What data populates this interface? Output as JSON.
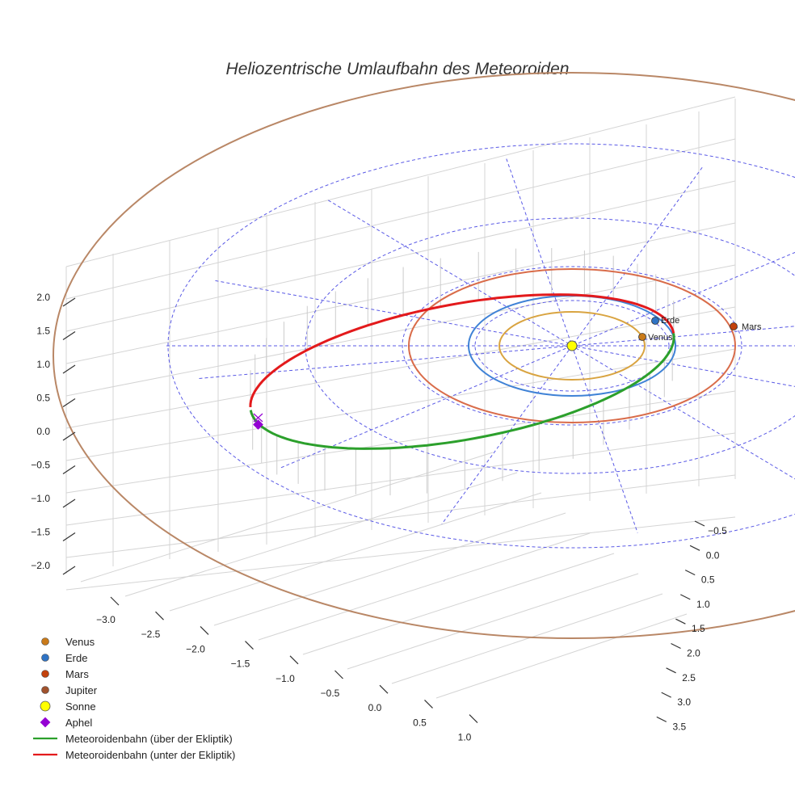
{
  "chart_data": {
    "type": "line",
    "title": "Heliozentrische Umlaufbahn des Meteoroiden",
    "axes": {
      "x": {
        "ticks": [
          "−3.0",
          "−2.5",
          "−2.0",
          "−1.5",
          "−1.0",
          "−0.5",
          "0.0",
          "0.5",
          "1.0"
        ],
        "range": [
          -3.2,
          1.2
        ]
      },
      "y": {
        "ticks": [
          "−0.5",
          "0.0",
          "0.5",
          "1.0",
          "1.5",
          "2.0",
          "2.5",
          "3.0",
          "3.5"
        ],
        "range": [
          -0.8,
          3.7
        ]
      },
      "z": {
        "ticks": [
          "2.0",
          "1.5",
          "1.0",
          "0.5",
          "0.0",
          "−0.5",
          "−1.0",
          "−1.5",
          "−2.0"
        ],
        "range": [
          -2.3,
          2.3
        ]
      }
    },
    "planets": [
      {
        "name": "Venus",
        "label": "Venus",
        "radius_au": 0.72,
        "color": "#d9a441",
        "marker": "#c97a1a"
      },
      {
        "name": "Erde",
        "label": "Erde",
        "radius_au": 1.0,
        "color": "#3f82d6",
        "marker": "#2f73c4"
      },
      {
        "name": "Mars",
        "label": "Mars",
        "radius_au": 1.52,
        "color": "#d96c4a",
        "marker": "#c2410c"
      },
      {
        "name": "Jupiter",
        "label": "Jupiter",
        "radius_au": 5.2,
        "color": "#b98766",
        "marker": "#a0522d"
      }
    ],
    "sun": {
      "name": "Sonne",
      "color": "#ffff00"
    },
    "aphel": {
      "name": "Aphel",
      "color": "#9400d3"
    },
    "meteoroid_orbit": {
      "above": {
        "name": "Meteoroidenbahn (über der Ekliptik)",
        "color": "#2ca02c"
      },
      "below": {
        "name": "Meteoroidenbahn (unter der Ekliptik)",
        "color": "#e31a1c"
      }
    },
    "legend_position": "bottom-left"
  },
  "legend": {
    "venus": "Venus",
    "erde": "Erde",
    "mars": "Mars",
    "jupiter": "Jupiter",
    "sonne": "Sonne",
    "aphel": "Aphel",
    "orbit_above": "Meteoroidenbahn (über der Ekliptik)",
    "orbit_below": "Meteoroidenbahn (unter der Ekliptik)"
  },
  "colors": {
    "grid": "#d4d4d4",
    "ecliptic_grid": "#5a5ae6",
    "text": "#222222",
    "background": "#ffffff"
  }
}
